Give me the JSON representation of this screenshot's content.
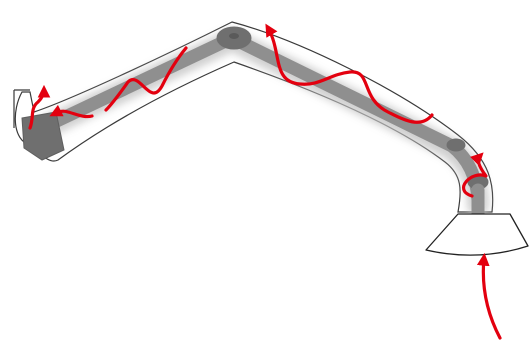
{
  "diagram": {
    "colors": {
      "background": "#ffffff",
      "arm_outline": "#3a3a3a",
      "arm_shell": "#ffffff",
      "arm_core": "#8f8f8f",
      "arm_core_dark": "#6f6f6f",
      "arm_glow": "#c8c8c8",
      "airflow": "#e3000f",
      "hood_fill": "#ffffff",
      "hood_stroke": "#222222"
    },
    "icons": {
      "airflow": "red-airflow-arrow",
      "joint": "grey-pivot-joint",
      "hood": "extraction-hood"
    }
  }
}
